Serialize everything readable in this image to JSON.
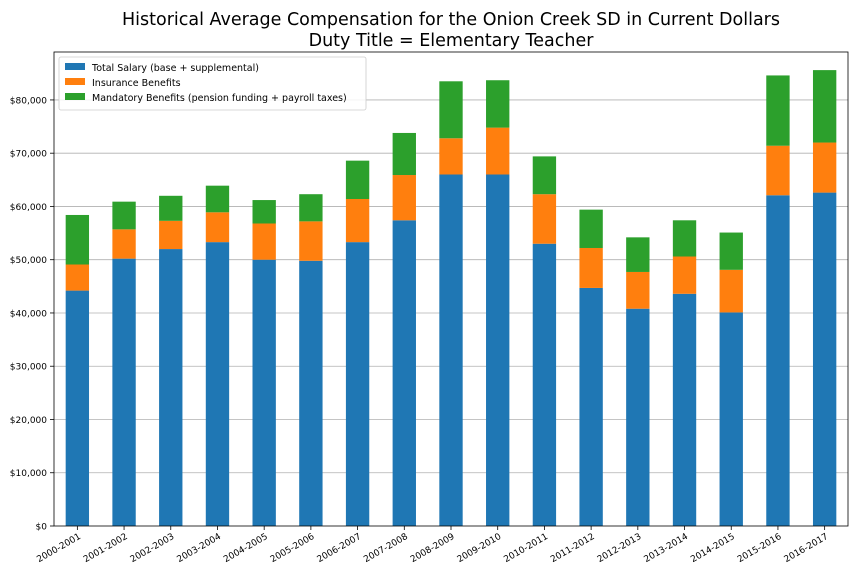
{
  "chart_data": {
    "type": "bar",
    "stacked": true,
    "title_line1": "Historical Average Compensation for the Onion Creek SD in Current Dollars",
    "title_line2": "Duty Title = Elementary Teacher",
    "xlabel": "",
    "ylabel": "",
    "ylim": [
      0,
      89000
    ],
    "yticks": [
      0,
      10000,
      20000,
      30000,
      40000,
      50000,
      60000,
      70000,
      80000
    ],
    "ytick_labels": [
      "$0",
      "$10,000",
      "$20,000",
      "$30,000",
      "$40,000",
      "$50,000",
      "$60,000",
      "$70,000",
      "$80,000"
    ],
    "grid": "horizontal",
    "legend_position": "top-left",
    "categories": [
      "2000-2001",
      "2001-2002",
      "2002-2003",
      "2003-2004",
      "2004-2005",
      "2005-2006",
      "2006-2007",
      "2007-2008",
      "2008-2009",
      "2009-2010",
      "2010-2011",
      "2011-2012",
      "2012-2013",
      "2013-2014",
      "2014-2015",
      "2015-2016",
      "2016-2017"
    ],
    "series": [
      {
        "name": "Total Salary (base + supplemental)",
        "color": "#1f77b4",
        "values": [
          44200,
          50200,
          52000,
          53300,
          50000,
          49800,
          53300,
          57400,
          66000,
          66000,
          53000,
          44700,
          40800,
          43600,
          40100,
          62100,
          62600
        ]
      },
      {
        "name": "Insurance Benefits",
        "color": "#ff7f0e",
        "values": [
          4900,
          5500,
          5300,
          5600,
          6800,
          7400,
          8100,
          8500,
          6800,
          8800,
          9300,
          7500,
          6900,
          7000,
          8000,
          9300,
          9400
        ]
      },
      {
        "name": "Mandatory Benefits (pension funding + payroll taxes)",
        "color": "#2ca02c",
        "values": [
          9300,
          5200,
          4700,
          5000,
          4400,
          5100,
          7200,
          7900,
          10700,
          8900,
          7100,
          7200,
          6500,
          6800,
          7000,
          13200,
          13600
        ]
      }
    ]
  }
}
